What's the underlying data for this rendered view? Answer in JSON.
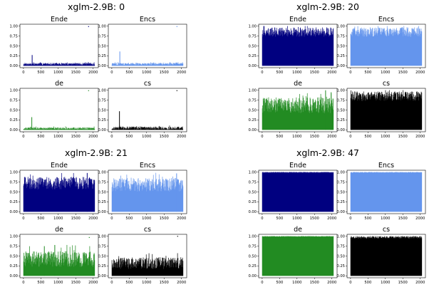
{
  "chart_data": {
    "type": "bar",
    "description_free": true,
    "groups": [
      {
        "title": "xglm-2.9B: 0",
        "panels": [
          {
            "title": "Ende",
            "color": "#000080",
            "base": 0.04,
            "spread": 0.03,
            "spikes": [
              [
                250,
                0.27
              ]
            ],
            "dots": [
              [
                1870,
                0.99
              ]
            ]
          },
          {
            "title": "Encs",
            "color": "#6495ED",
            "base": 0.04,
            "spread": 0.03,
            "spikes": [
              [
                230,
                0.36
              ]
            ],
            "dots": [
              [
                1870,
                0.99
              ]
            ]
          },
          {
            "title": "de",
            "color": "#228B22",
            "base": 0.03,
            "spread": 0.03,
            "spikes": [
              [
                240,
                0.32
              ]
            ],
            "dots": [
              [
                1870,
                0.99
              ]
            ]
          },
          {
            "title": "cs",
            "color": "#000000",
            "base": 0.04,
            "spread": 0.04,
            "spikes": [
              [
                220,
                0.47
              ]
            ],
            "dots": [
              [
                1870,
                0.99
              ]
            ]
          }
        ]
      },
      {
        "title": "xglm-2.9B: 20",
        "panels": [
          {
            "title": "Ende",
            "color": "#000080",
            "base": 0.85,
            "spread": 0.12,
            "spikes": [],
            "dots": []
          },
          {
            "title": "Encs",
            "color": "#6495ED",
            "base": 0.85,
            "spread": 0.12,
            "spikes": [],
            "dots": []
          },
          {
            "title": "de",
            "color": "#228B22",
            "base": 0.62,
            "spread": 0.2,
            "spikes": [
              [
                1820,
                1.0
              ],
              [
                1980,
                0.95
              ]
            ],
            "dots": []
          },
          {
            "title": "cs",
            "color": "#000000",
            "base": 0.85,
            "spread": 0.12,
            "spikes": [],
            "dots": []
          }
        ]
      },
      {
        "title": "xglm-2.9B: 21",
        "panels": [
          {
            "title": "Ende",
            "color": "#000080",
            "base": 0.72,
            "spread": 0.16,
            "spikes": [
              [
                1830,
                0.98
              ]
            ],
            "dots": []
          },
          {
            "title": "Encs",
            "color": "#6495ED",
            "base": 0.68,
            "spread": 0.17,
            "spikes": [
              [
                1860,
                0.97
              ]
            ],
            "dots": []
          },
          {
            "title": "de",
            "color": "#228B22",
            "base": 0.42,
            "spread": 0.2,
            "spikes": [
              [
                600,
                0.75
              ],
              [
                900,
                0.78
              ]
            ],
            "dots": [
              [
                1890,
                0.97
              ]
            ]
          },
          {
            "title": "cs",
            "color": "#000000",
            "base": 0.32,
            "spread": 0.15,
            "spikes": [],
            "dots": [
              [
                1890,
                1.0
              ]
            ]
          }
        ]
      },
      {
        "title": "xglm-2.9B: 47",
        "panels": [
          {
            "title": "Ende",
            "color": "#000080",
            "base": 0.995,
            "spread": 0.01,
            "spikes": [],
            "dots": []
          },
          {
            "title": "Encs",
            "color": "#6495ED",
            "base": 0.995,
            "spread": 0.01,
            "spikes": [],
            "dots": []
          },
          {
            "title": "de",
            "color": "#228B22",
            "base": 0.995,
            "spread": 0.01,
            "spikes": [],
            "dots": []
          },
          {
            "title": "cs",
            "color": "#000000",
            "base": 0.97,
            "spread": 0.03,
            "spikes": [],
            "dots": []
          }
        ]
      }
    ],
    "x_ticks": [
      0,
      500,
      1000,
      1500,
      2000
    ],
    "x_tick_labels": [
      "0",
      "500",
      "1000",
      "1500",
      "2000"
    ],
    "y_ticks": [
      0.0,
      0.25,
      0.5,
      0.75,
      1.0
    ],
    "y_tick_labels": [
      "0.00",
      "0.25",
      "0.50",
      "0.75",
      "1.00"
    ],
    "xlim": [
      -100,
      2150
    ],
    "ylim": [
      -0.05,
      1.05
    ],
    "n_points": 2048,
    "grid": false
  }
}
